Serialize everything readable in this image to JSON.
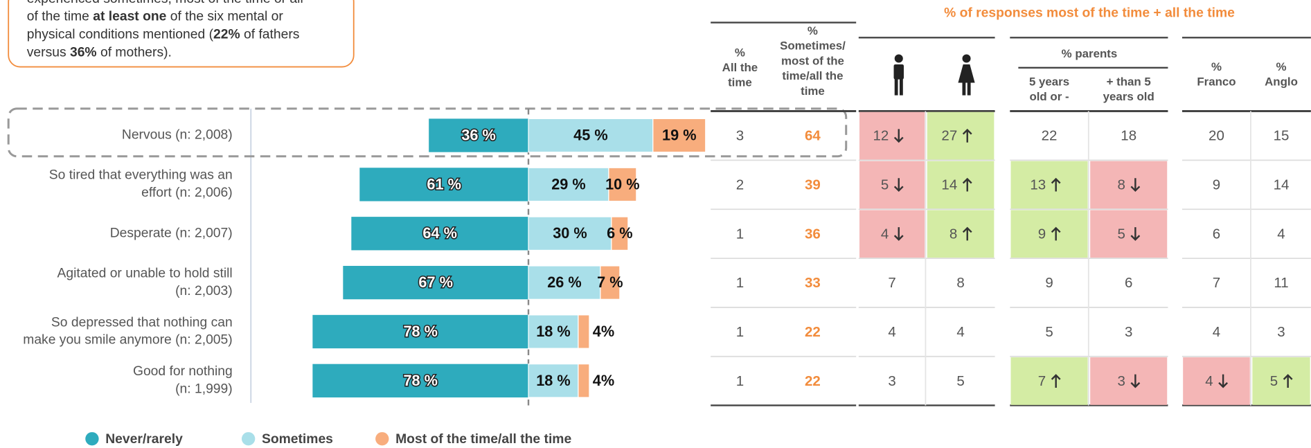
{
  "note": {
    "lines": [
      [
        {
          "text": "experienced sometimes, most of the time or all"
        }
      ],
      [
        {
          "text": "of the time "
        },
        {
          "text": "at least one",
          "bold": true
        },
        {
          "text": " of the six mental or"
        }
      ],
      [
        {
          "text": "physical conditions mentioned ("
        },
        {
          "text": "22%",
          "bold": true
        },
        {
          "text": " of fathers"
        }
      ],
      [
        {
          "text": "versus "
        },
        {
          "text": "36%",
          "bold": true
        },
        {
          "text": " of mothers)."
        }
      ]
    ]
  },
  "chart_data": {
    "type": "bar",
    "orientation": "horizontal",
    "categories": [
      "Nervous (n: 2,008)",
      "So tired that everything was an\neffort (n: 2,006)",
      "Desperate (n: 2,007)",
      "Agitated or unable to hold still\n(n: 2,003)",
      "So depressed that nothing can\nmake you smile anymore (n: 2,005)",
      "Good for nothing\n(n: 1,999)"
    ],
    "xlim": [
      0,
      100
    ],
    "series": [
      {
        "name": "Never/rarely",
        "color": "#2eabbd",
        "values": [
          36,
          61,
          64,
          67,
          78,
          78
        ],
        "value_labels": [
          "36 %",
          "61 %",
          "64 %",
          "67 %",
          "78 %",
          "78 %"
        ]
      },
      {
        "name": "Sometimes",
        "color": "#a9dfe9",
        "values": [
          45,
          29,
          30,
          26,
          18,
          18
        ],
        "value_labels": [
          "45 %",
          "29 %",
          "30 %",
          "26 %",
          "18 %",
          "18 %"
        ]
      },
      {
        "name": "Most of the time/all the time",
        "color": "#f8ad7d",
        "values": [
          19,
          10,
          6,
          7,
          4,
          4
        ],
        "value_labels": [
          "19 %",
          "10 %",
          "6 %",
          "7 %",
          "4%",
          "4%"
        ]
      }
    ]
  },
  "table": {
    "title": "% of responses most of the time + all the time",
    "group": "% parents",
    "columns": [
      "%\nAll the\ntime",
      "%\nSometimes/\nmost of the\ntime/all the\ntime",
      null,
      null,
      "5 years\nold or -",
      "+ than 5\nyears old",
      "%\nFranco",
      "%\nAnglo"
    ],
    "rows": [
      [
        3,
        64,
        {
          "value": 12,
          "trend": "down"
        },
        {
          "value": 27,
          "trend": "up"
        },
        22,
        18,
        20,
        15
      ],
      [
        2,
        39,
        {
          "value": 5,
          "trend": "down"
        },
        {
          "value": 14,
          "trend": "up"
        },
        {
          "value": 13,
          "trend": "up"
        },
        {
          "value": 8,
          "trend": "down"
        },
        9,
        14
      ],
      [
        1,
        36,
        {
          "value": 4,
          "trend": "down"
        },
        {
          "value": 8,
          "trend": "up"
        },
        {
          "value": 9,
          "trend": "up"
        },
        {
          "value": 5,
          "trend": "down"
        },
        6,
        4
      ],
      [
        1,
        33,
        7,
        8,
        9,
        6,
        7,
        11
      ],
      [
        1,
        22,
        4,
        4,
        5,
        3,
        4,
        3
      ],
      [
        1,
        22,
        3,
        5,
        {
          "value": 7,
          "trend": "up"
        },
        {
          "value": 3,
          "trend": "down"
        },
        {
          "value": 4,
          "trend": "down"
        },
        {
          "value": 5,
          "trend": "up"
        }
      ]
    ]
  }
}
